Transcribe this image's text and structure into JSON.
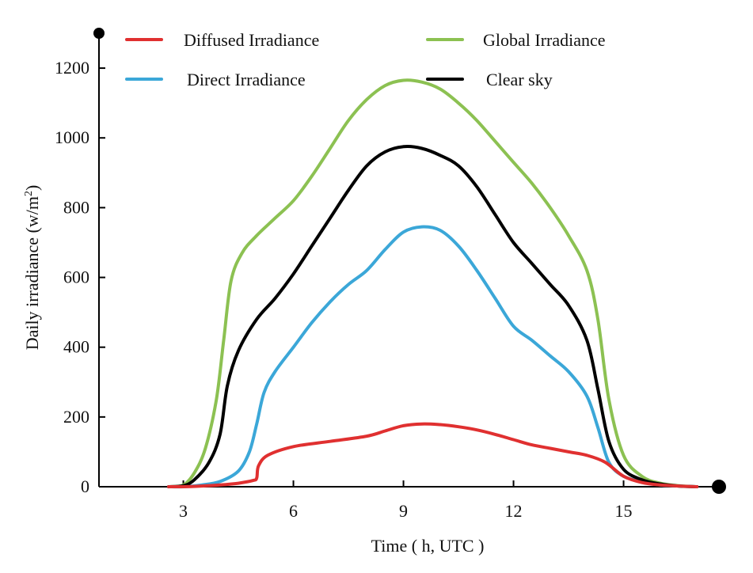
{
  "chart_data": {
    "type": "line",
    "title": "",
    "xlabel": "Time ( h, UTC )",
    "ylabel": "Daily irradiance (w/m",
    "ylabel_sup": "2",
    "ylabel_close": ")",
    "xlim": [
      0.7,
      17.6
    ],
    "ylim": [
      0,
      1300
    ],
    "x_ticks": [
      3,
      6,
      9,
      12,
      15
    ],
    "y_ticks": [
      0,
      200,
      400,
      600,
      800,
      1000,
      1200
    ],
    "grid": false,
    "legend": "top",
    "legend_layout": [
      [
        "Diffused Irradiance",
        "Global Irradiance"
      ],
      [
        "Direct Irradiance",
        "Clear sky"
      ]
    ],
    "series": [
      {
        "name": "Diffused Irradiance",
        "color": "#e03030",
        "x": [
          2.6,
          3.0,
          3.5,
          4.0,
          4.5,
          4.9,
          5.0,
          5.05,
          5.3,
          6.0,
          7.0,
          8.0,
          8.5,
          9.0,
          9.5,
          10.0,
          10.5,
          11.0,
          11.5,
          12.0,
          12.5,
          13.0,
          13.5,
          14.0,
          14.5,
          15.0,
          15.5,
          16.0,
          16.5,
          17.0
        ],
        "y": [
          0,
          0,
          2,
          5,
          10,
          18,
          25,
          60,
          90,
          115,
          130,
          145,
          160,
          175,
          180,
          178,
          172,
          163,
          150,
          135,
          120,
          110,
          100,
          90,
          70,
          30,
          12,
          5,
          2,
          0
        ]
      },
      {
        "name": "Direct Irradiance",
        "color": "#3ba7d8",
        "x": [
          2.6,
          3.0,
          3.5,
          4.0,
          4.5,
          4.8,
          5.0,
          5.2,
          5.5,
          6.0,
          6.5,
          7.0,
          7.5,
          8.0,
          8.5,
          9.0,
          9.5,
          10.0,
          10.5,
          11.0,
          11.5,
          12.0,
          12.5,
          13.0,
          13.5,
          14.0,
          14.3,
          14.6,
          15.0,
          15.5,
          16.0,
          16.5,
          17.0
        ],
        "y": [
          0,
          0,
          5,
          15,
          45,
          100,
          180,
          270,
          330,
          400,
          470,
          530,
          580,
          620,
          680,
          730,
          745,
          735,
          690,
          620,
          540,
          460,
          420,
          375,
          330,
          260,
          170,
          70,
          30,
          15,
          5,
          2,
          0
        ]
      },
      {
        "name": "Global Irradiance",
        "color": "#8cc152",
        "x": [
          2.6,
          3.0,
          3.3,
          3.6,
          3.9,
          4.1,
          4.3,
          4.6,
          5.0,
          5.5,
          6.0,
          6.5,
          7.0,
          7.5,
          8.0,
          8.5,
          9.0,
          9.5,
          10.0,
          10.5,
          11.0,
          11.5,
          12.0,
          12.5,
          13.0,
          13.5,
          14.0,
          14.3,
          14.6,
          15.0,
          15.5,
          16.0,
          16.5,
          17.0
        ],
        "y": [
          0,
          5,
          40,
          110,
          250,
          420,
          590,
          670,
          720,
          770,
          820,
          890,
          970,
          1050,
          1110,
          1150,
          1165,
          1160,
          1140,
          1100,
          1050,
          990,
          930,
          870,
          800,
          720,
          620,
          480,
          250,
          90,
          30,
          10,
          3,
          0
        ]
      },
      {
        "name": "Clear sky",
        "color": "#000000",
        "x": [
          2.6,
          3.0,
          3.3,
          3.7,
          4.0,
          4.2,
          4.5,
          5.0,
          5.5,
          6.0,
          6.5,
          7.0,
          7.5,
          8.0,
          8.5,
          9.0,
          9.5,
          10.0,
          10.5,
          11.0,
          11.5,
          12.0,
          12.5,
          13.0,
          13.5,
          14.0,
          14.3,
          14.6,
          15.0,
          15.5,
          16.0,
          16.5,
          17.0
        ],
        "y": [
          0,
          3,
          20,
          70,
          150,
          290,
          390,
          480,
          540,
          610,
          690,
          770,
          850,
          920,
          960,
          975,
          970,
          950,
          920,
          860,
          780,
          700,
          640,
          580,
          520,
          420,
          280,
          130,
          50,
          20,
          8,
          2,
          0
        ]
      }
    ]
  }
}
